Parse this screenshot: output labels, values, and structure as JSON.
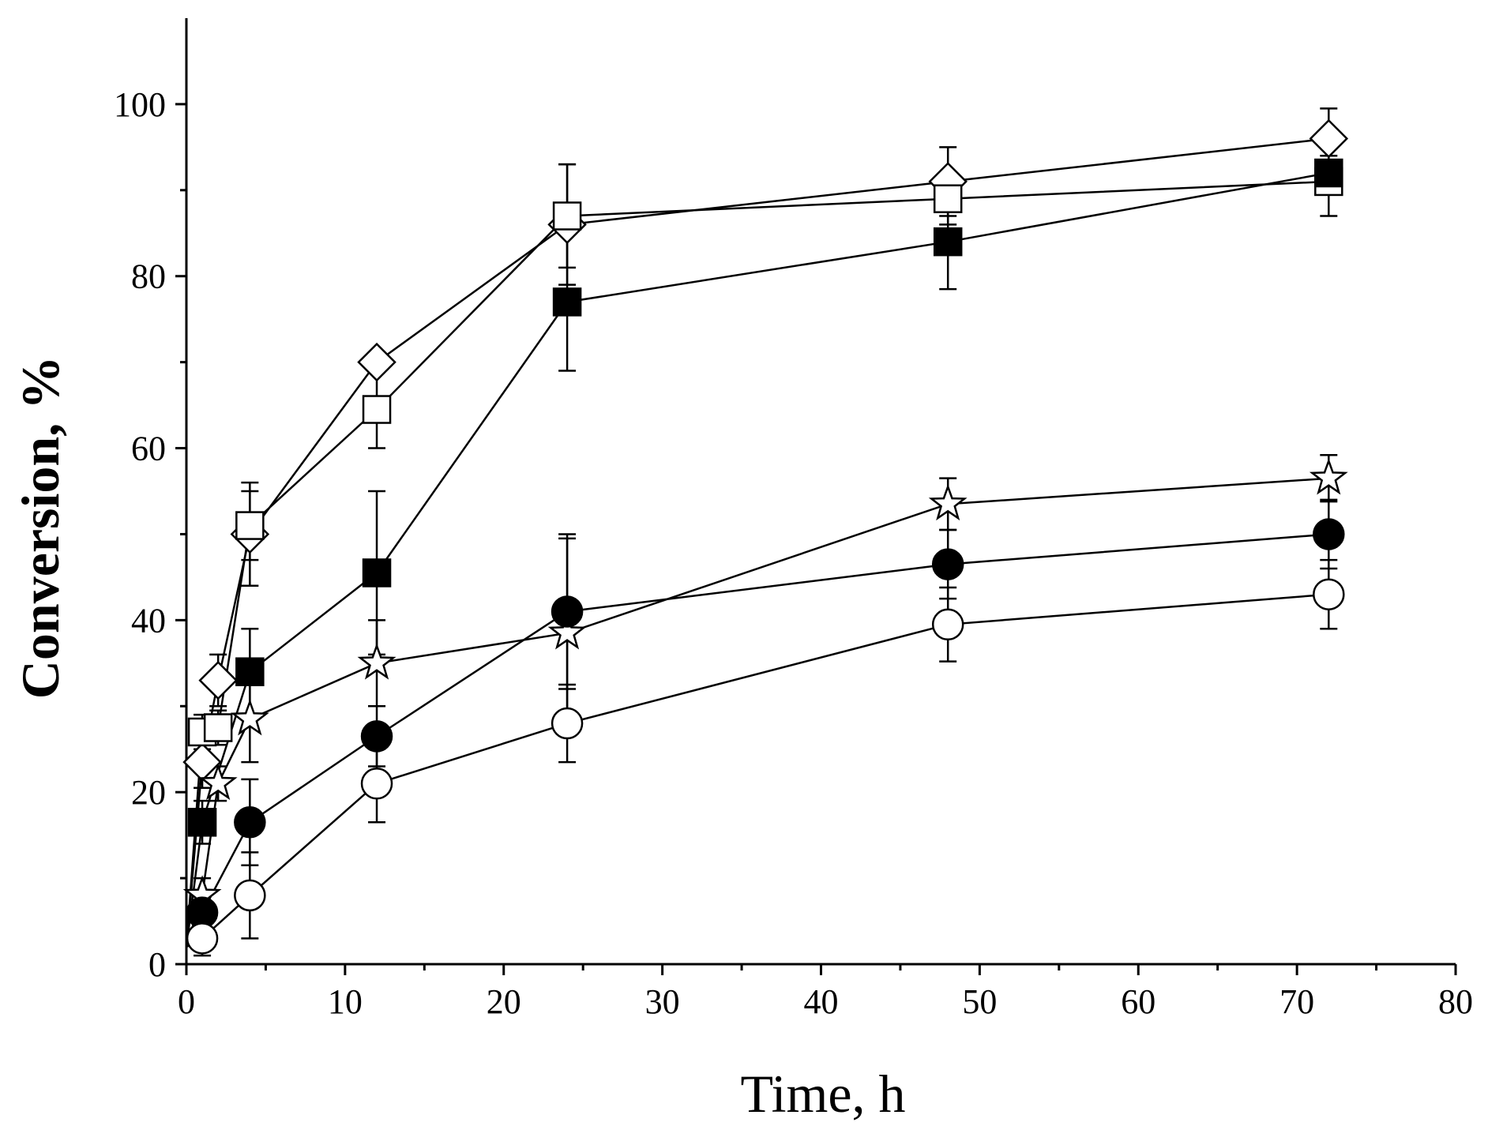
{
  "chart_data": {
    "type": "line",
    "title": "",
    "xlabel": "Time, h",
    "ylabel": "Conversion, %",
    "xlim": [
      0,
      80
    ],
    "ylim": [
      0,
      110
    ],
    "x_ticks": [
      0,
      10,
      20,
      30,
      40,
      50,
      60,
      70,
      80
    ],
    "y_ticks": [
      0,
      20,
      40,
      60,
      80,
      100
    ],
    "x_tick_labels": [
      "0",
      "10",
      "20",
      "30",
      "40",
      "50",
      "60",
      "70",
      "80"
    ],
    "y_tick_labels": [
      "0",
      "20",
      "40",
      "60",
      "80",
      "100"
    ],
    "grid": false,
    "legend": "none",
    "series": [
      {
        "name": "open diamond",
        "marker": "diamond",
        "fill": "#ffffff",
        "x": [
          0,
          1,
          2,
          4,
          12,
          24,
          48,
          72
        ],
        "y": [
          2,
          23.5,
          33,
          50,
          70,
          86,
          91,
          96
        ],
        "err": [
          0,
          3,
          3,
          6,
          0,
          7,
          4,
          3.5
        ]
      },
      {
        "name": "open square",
        "marker": "square",
        "fill": "#ffffff",
        "x": [
          0,
          1,
          2,
          4,
          12,
          24,
          48,
          72
        ],
        "y": [
          2,
          27,
          27.5,
          51,
          64.5,
          87,
          89,
          91
        ],
        "err": [
          0,
          2,
          2,
          4,
          4.5,
          6,
          3,
          4
        ]
      },
      {
        "name": "filled square",
        "marker": "square",
        "fill": "#000000",
        "x": [
          0,
          1,
          4,
          12,
          24,
          48,
          72
        ],
        "y": [
          2,
          16.5,
          34,
          45.5,
          77,
          84,
          92
        ],
        "err": [
          0,
          2.5,
          5,
          9.5,
          8,
          5.5,
          2
        ]
      },
      {
        "name": "open star",
        "marker": "star",
        "fill": "#ffffff",
        "x": [
          0,
          1,
          2,
          4,
          12,
          24,
          48,
          72
        ],
        "y": [
          2,
          8,
          21,
          28.5,
          35,
          38.5,
          53.5,
          56.5
        ],
        "err": [
          0,
          2,
          2,
          5,
          5,
          11,
          3,
          2.7
        ]
      },
      {
        "name": "filled circle",
        "marker": "circle",
        "fill": "#000000",
        "x": [
          0,
          1,
          4,
          12,
          24,
          48,
          72
        ],
        "y": [
          2,
          6,
          16.5,
          26.5,
          41,
          46.5,
          50
        ],
        "err": [
          0,
          2,
          5,
          3.5,
          9,
          4,
          4
        ]
      },
      {
        "name": "open circle",
        "marker": "circle",
        "fill": "#ffffff",
        "x": [
          0,
          1,
          4,
          12,
          24,
          48,
          72
        ],
        "y": [
          2,
          3,
          8,
          21,
          28,
          39.5,
          43
        ],
        "err": [
          0,
          2,
          5,
          4.5,
          4.5,
          4.3,
          4
        ]
      }
    ]
  }
}
